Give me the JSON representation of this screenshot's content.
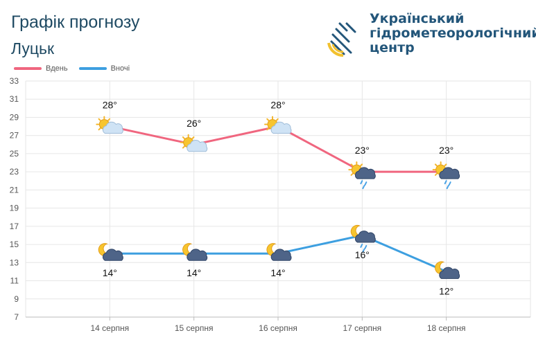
{
  "header": {
    "title": "Графік прогнозу",
    "city": "Луцьк",
    "org_line1": "Український",
    "org_line2": "гідрометеорологічний",
    "org_line3": "центр"
  },
  "colors": {
    "day": "#f0667f",
    "night": "#3d9fe0",
    "grid": "#e6e6e6",
    "axis_text": "#555555"
  },
  "chart_data": {
    "type": "line",
    "categories": [
      "14 серпня",
      "15 серпня",
      "16 серпня",
      "17 серпня",
      "18 серпня"
    ],
    "series": [
      {
        "name": "Вдень",
        "values": [
          28,
          26,
          28,
          23,
          23
        ],
        "labels": [
          "28°",
          "26°",
          "28°",
          "23°",
          "23°"
        ],
        "icons": [
          "sun-cloud-icon",
          "sun-cloud-icon",
          "sun-cloud-icon",
          "sun-rain-icon",
          "sun-rain-icon"
        ]
      },
      {
        "name": "Вночі",
        "values": [
          14,
          14,
          14,
          16,
          12
        ],
        "labels": [
          "14°",
          "14°",
          "14°",
          "16°",
          "12°"
        ],
        "icons": [
          "moon-cloud-icon",
          "moon-cloud-icon",
          "moon-cloud-icon",
          "moon-rain-icon",
          "moon-cloud-icon"
        ]
      }
    ],
    "y_ticks": [
      7,
      9,
      11,
      13,
      15,
      17,
      19,
      21,
      23,
      25,
      27,
      29,
      31,
      33
    ],
    "ylim": [
      7,
      33
    ],
    "grid": true,
    "legend": "top-left"
  }
}
